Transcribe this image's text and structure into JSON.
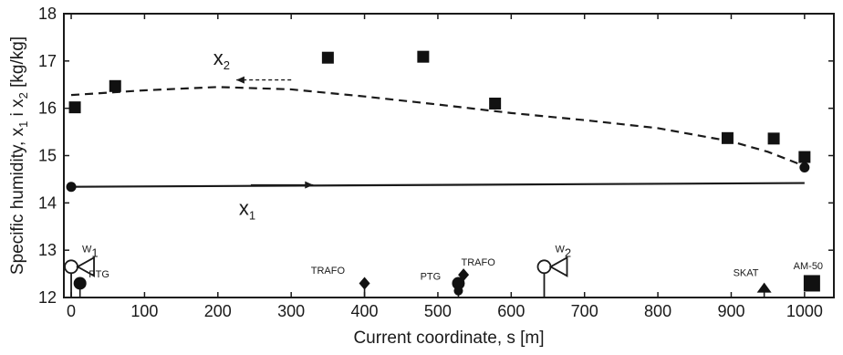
{
  "chart_data": {
    "type": "scatter",
    "xlabel": "Current coordinate, s [m]",
    "ylabel": {
      "parts": [
        {
          "t": "Specific humidity, x",
          "sub": false
        },
        {
          "t": "1",
          "sub": true
        },
        {
          "t": " i x",
          "sub": false
        },
        {
          "t": "2",
          "sub": true
        },
        {
          "t": " [kg/kg]",
          "sub": false
        }
      ]
    },
    "xlim": [
      -10,
      1040
    ],
    "ylim": [
      12,
      18
    ],
    "xticks": [
      0,
      100,
      200,
      300,
      400,
      500,
      600,
      700,
      800,
      900,
      1000
    ],
    "yticks": [
      12,
      13,
      14,
      15,
      16,
      17,
      18
    ],
    "grid": false,
    "series": [
      {
        "label_main": "x",
        "label_sub": "2",
        "marker": "square",
        "points": [
          [
            5,
            16.02
          ],
          [
            60,
            16.47
          ],
          [
            350,
            17.07
          ],
          [
            480,
            17.09
          ],
          [
            578,
            16.1
          ],
          [
            895,
            15.37
          ],
          [
            958,
            15.36
          ],
          [
            1000,
            14.97
          ]
        ],
        "trend": [
          [
            0,
            16.28
          ],
          [
            100,
            16.38
          ],
          [
            200,
            16.45
          ],
          [
            300,
            16.4
          ],
          [
            400,
            16.25
          ],
          [
            500,
            16.08
          ],
          [
            600,
            15.9
          ],
          [
            700,
            15.75
          ],
          [
            800,
            15.58
          ],
          [
            900,
            15.3
          ],
          [
            950,
            15.08
          ],
          [
            1000,
            14.78
          ]
        ]
      },
      {
        "label_main": "x",
        "label_sub": "1",
        "marker": "circle",
        "points": [
          [
            0,
            14.34
          ],
          [
            1000,
            14.75
          ]
        ],
        "line": [
          [
            0,
            14.34
          ],
          [
            1000,
            14.42
          ]
        ]
      }
    ],
    "annotations": {
      "x2_label": {
        "main": "x",
        "sub": "2",
        "at": [
          205,
          16.92
        ]
      },
      "x2_arrow": {
        "from": [
          300,
          16.6
        ],
        "to": [
          225,
          16.6
        ]
      },
      "x1_label": {
        "main": "x",
        "sub": "1",
        "at": [
          240,
          13.75
        ]
      },
      "x1_arrow": {
        "from": [
          245,
          14.38
        ],
        "to": [
          330,
          14.38
        ]
      },
      "w1": {
        "main": "W",
        "sub": "1",
        "s": 0
      },
      "w2": {
        "main": "W",
        "sub": "2",
        "s": 645
      },
      "labels": [
        {
          "text": "PTG",
          "s": 38,
          "y": 12.42
        },
        {
          "text": "TRAFO",
          "s": 350,
          "y": 12.5
        },
        {
          "text": "PTG",
          "s": 490,
          "y": 12.38
        },
        {
          "text": "TRAFO",
          "s": 555,
          "y": 12.68
        },
        {
          "text": "SKAT",
          "s": 920,
          "y": 12.45
        },
        {
          "text": "AM-50",
          "s": 1005,
          "y": 12.6
        }
      ]
    }
  }
}
